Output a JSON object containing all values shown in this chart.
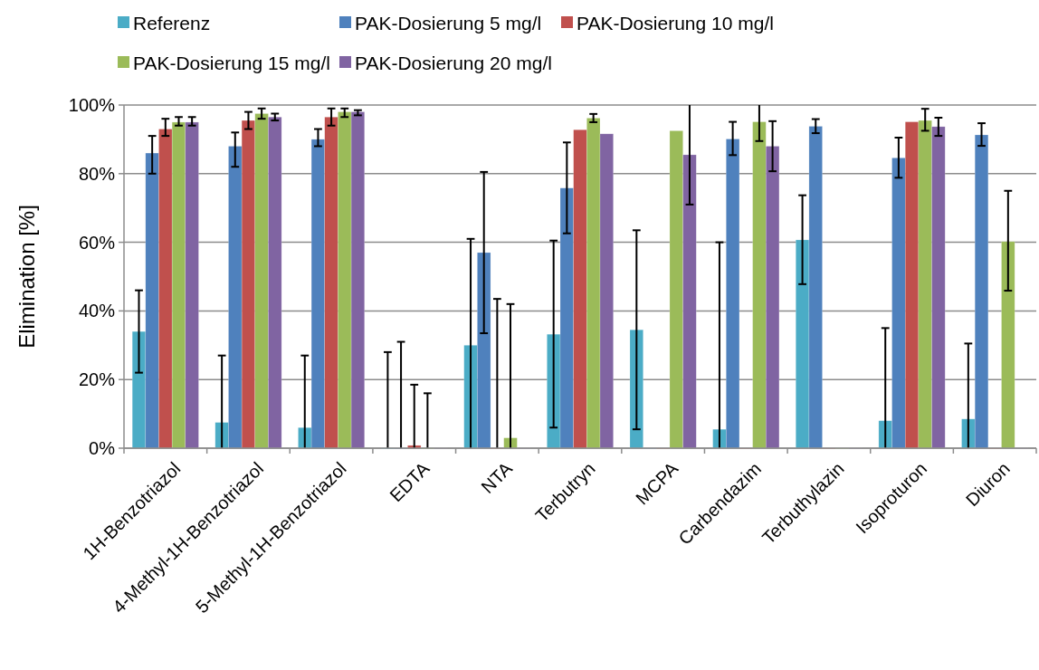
{
  "chart_data": {
    "type": "bar",
    "ylabel": "Elimination [%]",
    "categories": [
      "1H-Benzotriazol",
      "4-Methyl-1H-Benzotriazol",
      "5-Methyl-1H-Benzotriazol",
      "EDTA",
      "NTA",
      "Terbutryn",
      "MCPA",
      "Carbendazim",
      "Terbuthylazin",
      "Isoproturon",
      "Diuron"
    ],
    "series": [
      {
        "name": "Referenz",
        "color": "#4bacc6",
        "values": [
          34,
          7.5,
          6,
          0,
          30,
          33.2,
          34.5,
          5.5,
          60.7,
          8,
          8.5
        ],
        "errors": [
          [
            22,
            46
          ],
          [
            0,
            27
          ],
          [
            0,
            27
          ],
          [
            0,
            28
          ],
          [
            0,
            61
          ],
          [
            6,
            60.5
          ],
          [
            5.5,
            63.5
          ],
          [
            0,
            60
          ],
          [
            47.8,
            73.7
          ],
          [
            0,
            35
          ],
          [
            0,
            30.5
          ]
        ]
      },
      {
        "name": "PAK-Dosierung 5 mg/l",
        "color": "#4f81bd",
        "values": [
          86,
          88,
          90,
          0,
          57,
          75.8,
          0,
          90.1,
          93.8,
          84.6,
          91.3
        ],
        "errors": [
          [
            80,
            91
          ],
          [
            82,
            92
          ],
          [
            88,
            93
          ],
          [
            0,
            31
          ],
          [
            33.5,
            80.5
          ],
          [
            62.6,
            89.1
          ],
          null,
          [
            85.4,
            95.1
          ],
          [
            91.8,
            95.9
          ],
          [
            78.8,
            90.5
          ],
          [
            88.1,
            94.7
          ]
        ]
      },
      {
        "name": "PAK-Dosierung 10 mg/l",
        "color": "#c0504d",
        "values": [
          93,
          95.5,
          96.5,
          0.8,
          0,
          92.8,
          0,
          0,
          0,
          95.1,
          0
        ],
        "errors": [
          [
            91,
            96
          ],
          [
            93,
            98
          ],
          [
            94,
            99
          ],
          [
            0,
            18.5
          ],
          [
            0,
            43.5
          ],
          null,
          null,
          null,
          null,
          null,
          null
        ]
      },
      {
        "name": "PAK-Dosierung 15 mg/l",
        "color": "#9bbb59",
        "values": [
          95,
          97.5,
          98,
          0,
          3,
          96.2,
          92.5,
          95.1,
          0,
          95.5,
          60.2
        ],
        "errors": [
          [
            94,
            96.5
          ],
          [
            96,
            99
          ],
          [
            96.5,
            99
          ],
          [
            0,
            16
          ],
          [
            0,
            42
          ],
          [
            95,
            97.4
          ],
          null,
          [
            89.5,
            100
          ],
          null,
          [
            92.5,
            98.9
          ],
          [
            45.9,
            75
          ]
        ]
      },
      {
        "name": "PAK-Dosierung 20 mg/l",
        "color": "#8064a2",
        "values": [
          95,
          96.5,
          98,
          0,
          0,
          91.6,
          85.5,
          88,
          0,
          93.7,
          0
        ],
        "errors": [
          [
            94,
            96.5
          ],
          [
            95.5,
            97.5
          ],
          [
            97,
            98.5
          ],
          null,
          null,
          null,
          [
            71,
            100
          ],
          [
            80.7,
            95.3
          ],
          null,
          [
            91,
            96.3
          ],
          null
        ]
      }
    ],
    "ylim": [
      0,
      100
    ],
    "yticks": [
      {
        "value": 0,
        "label": "0%"
      },
      {
        "value": 20,
        "label": "20%"
      },
      {
        "value": 40,
        "label": "40%"
      },
      {
        "value": 60,
        "label": "60%"
      },
      {
        "value": 80,
        "label": "80%"
      },
      {
        "value": 100,
        "label": "100%"
      }
    ],
    "grid": "y",
    "legend": "top"
  }
}
